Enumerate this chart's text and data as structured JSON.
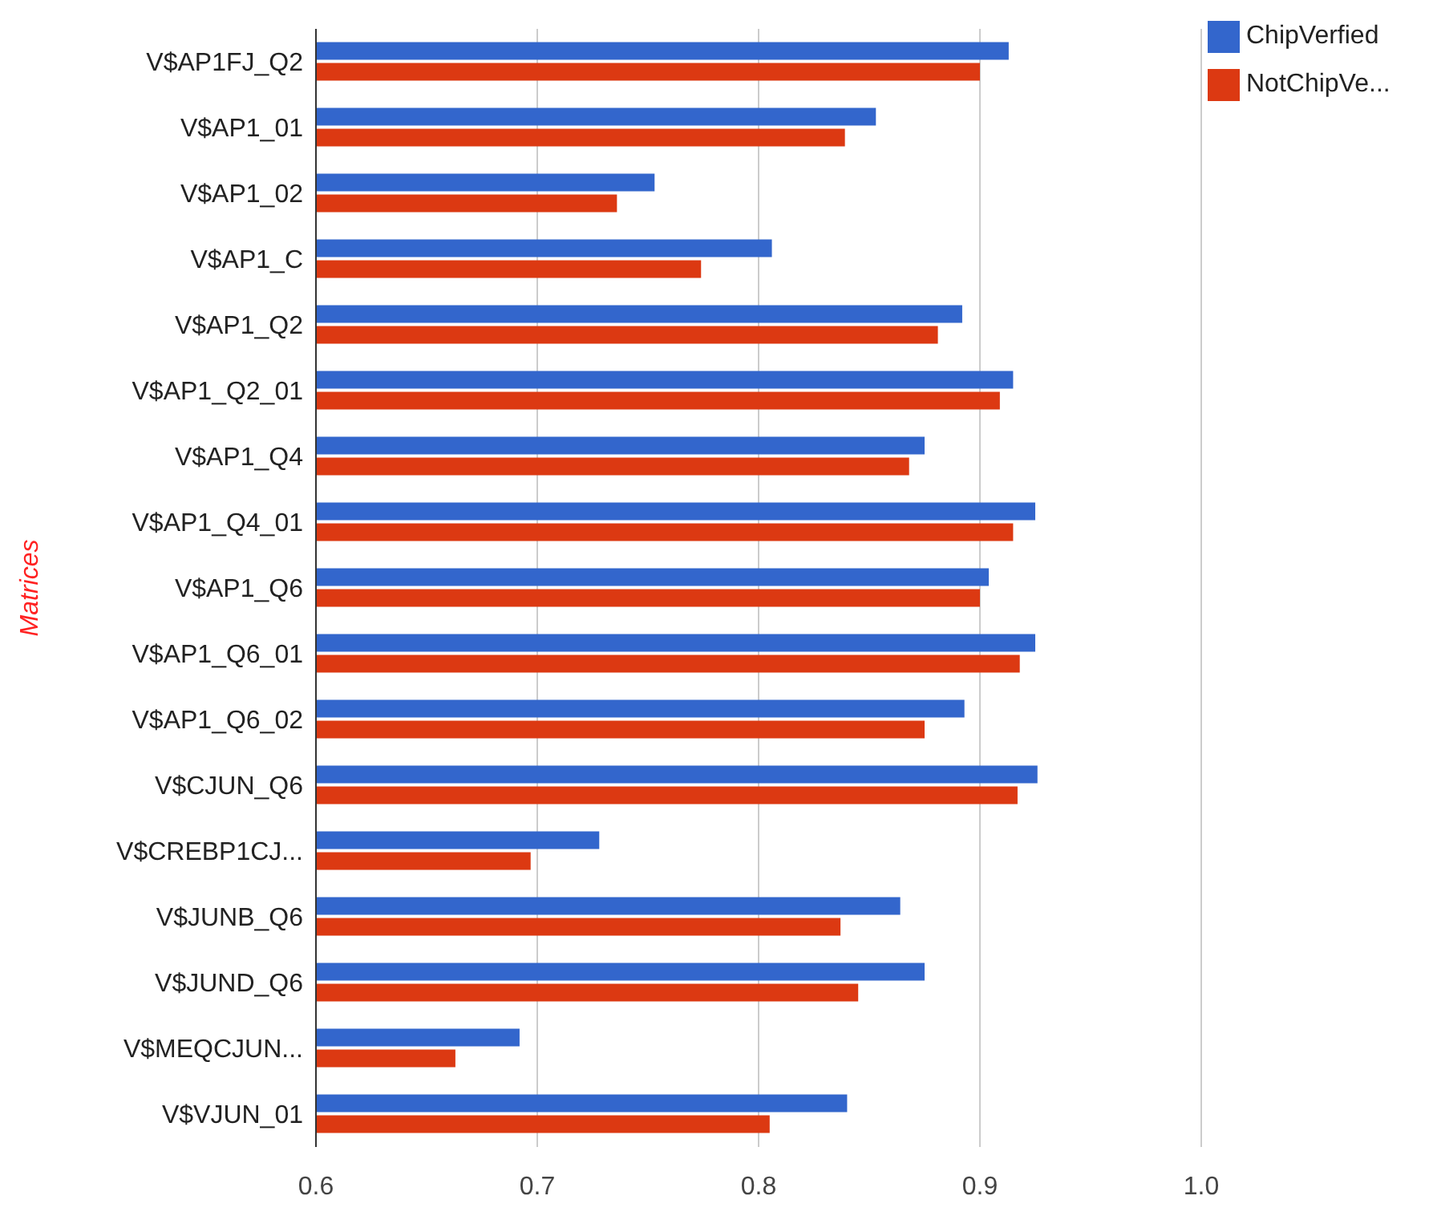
{
  "chart_data": {
    "type": "bar",
    "orientation": "horizontal",
    "ylabel": "Matrices",
    "categories": [
      "V$AP1FJ_Q2",
      "V$AP1_01",
      "V$AP1_02",
      "V$AP1_C",
      "V$AP1_Q2",
      "V$AP1_Q2_01",
      "V$AP1_Q4",
      "V$AP1_Q4_01",
      "V$AP1_Q6",
      "V$AP1_Q6_01",
      "V$AP1_Q6_02",
      "V$CJUN_Q6",
      "V$CREBP1CJ...",
      "V$JUNB_Q6",
      "V$JUND_Q6",
      "V$MEQCJUN...",
      "V$VJUN_01"
    ],
    "series": [
      {
        "name": "ChipVerfied",
        "color": "#3366cc",
        "values": [
          0.913,
          0.853,
          0.753,
          0.806,
          0.892,
          0.915,
          0.875,
          0.925,
          0.904,
          0.925,
          0.893,
          0.926,
          0.728,
          0.864,
          0.875,
          0.692,
          0.84
        ]
      },
      {
        "name": "NotChipVe...",
        "color": "#dc3912",
        "values": [
          0.9,
          0.839,
          0.736,
          0.774,
          0.881,
          0.909,
          0.868,
          0.915,
          0.9,
          0.918,
          0.875,
          0.917,
          0.697,
          0.837,
          0.845,
          0.663,
          0.805
        ]
      }
    ],
    "xlim": [
      0.6,
      1.0
    ],
    "xticks": [
      0.6,
      0.7,
      0.8,
      0.9,
      {
        "value": 1.0,
        "label": "1.0"
      }
    ],
    "grid": "x",
    "legend": "top right"
  }
}
